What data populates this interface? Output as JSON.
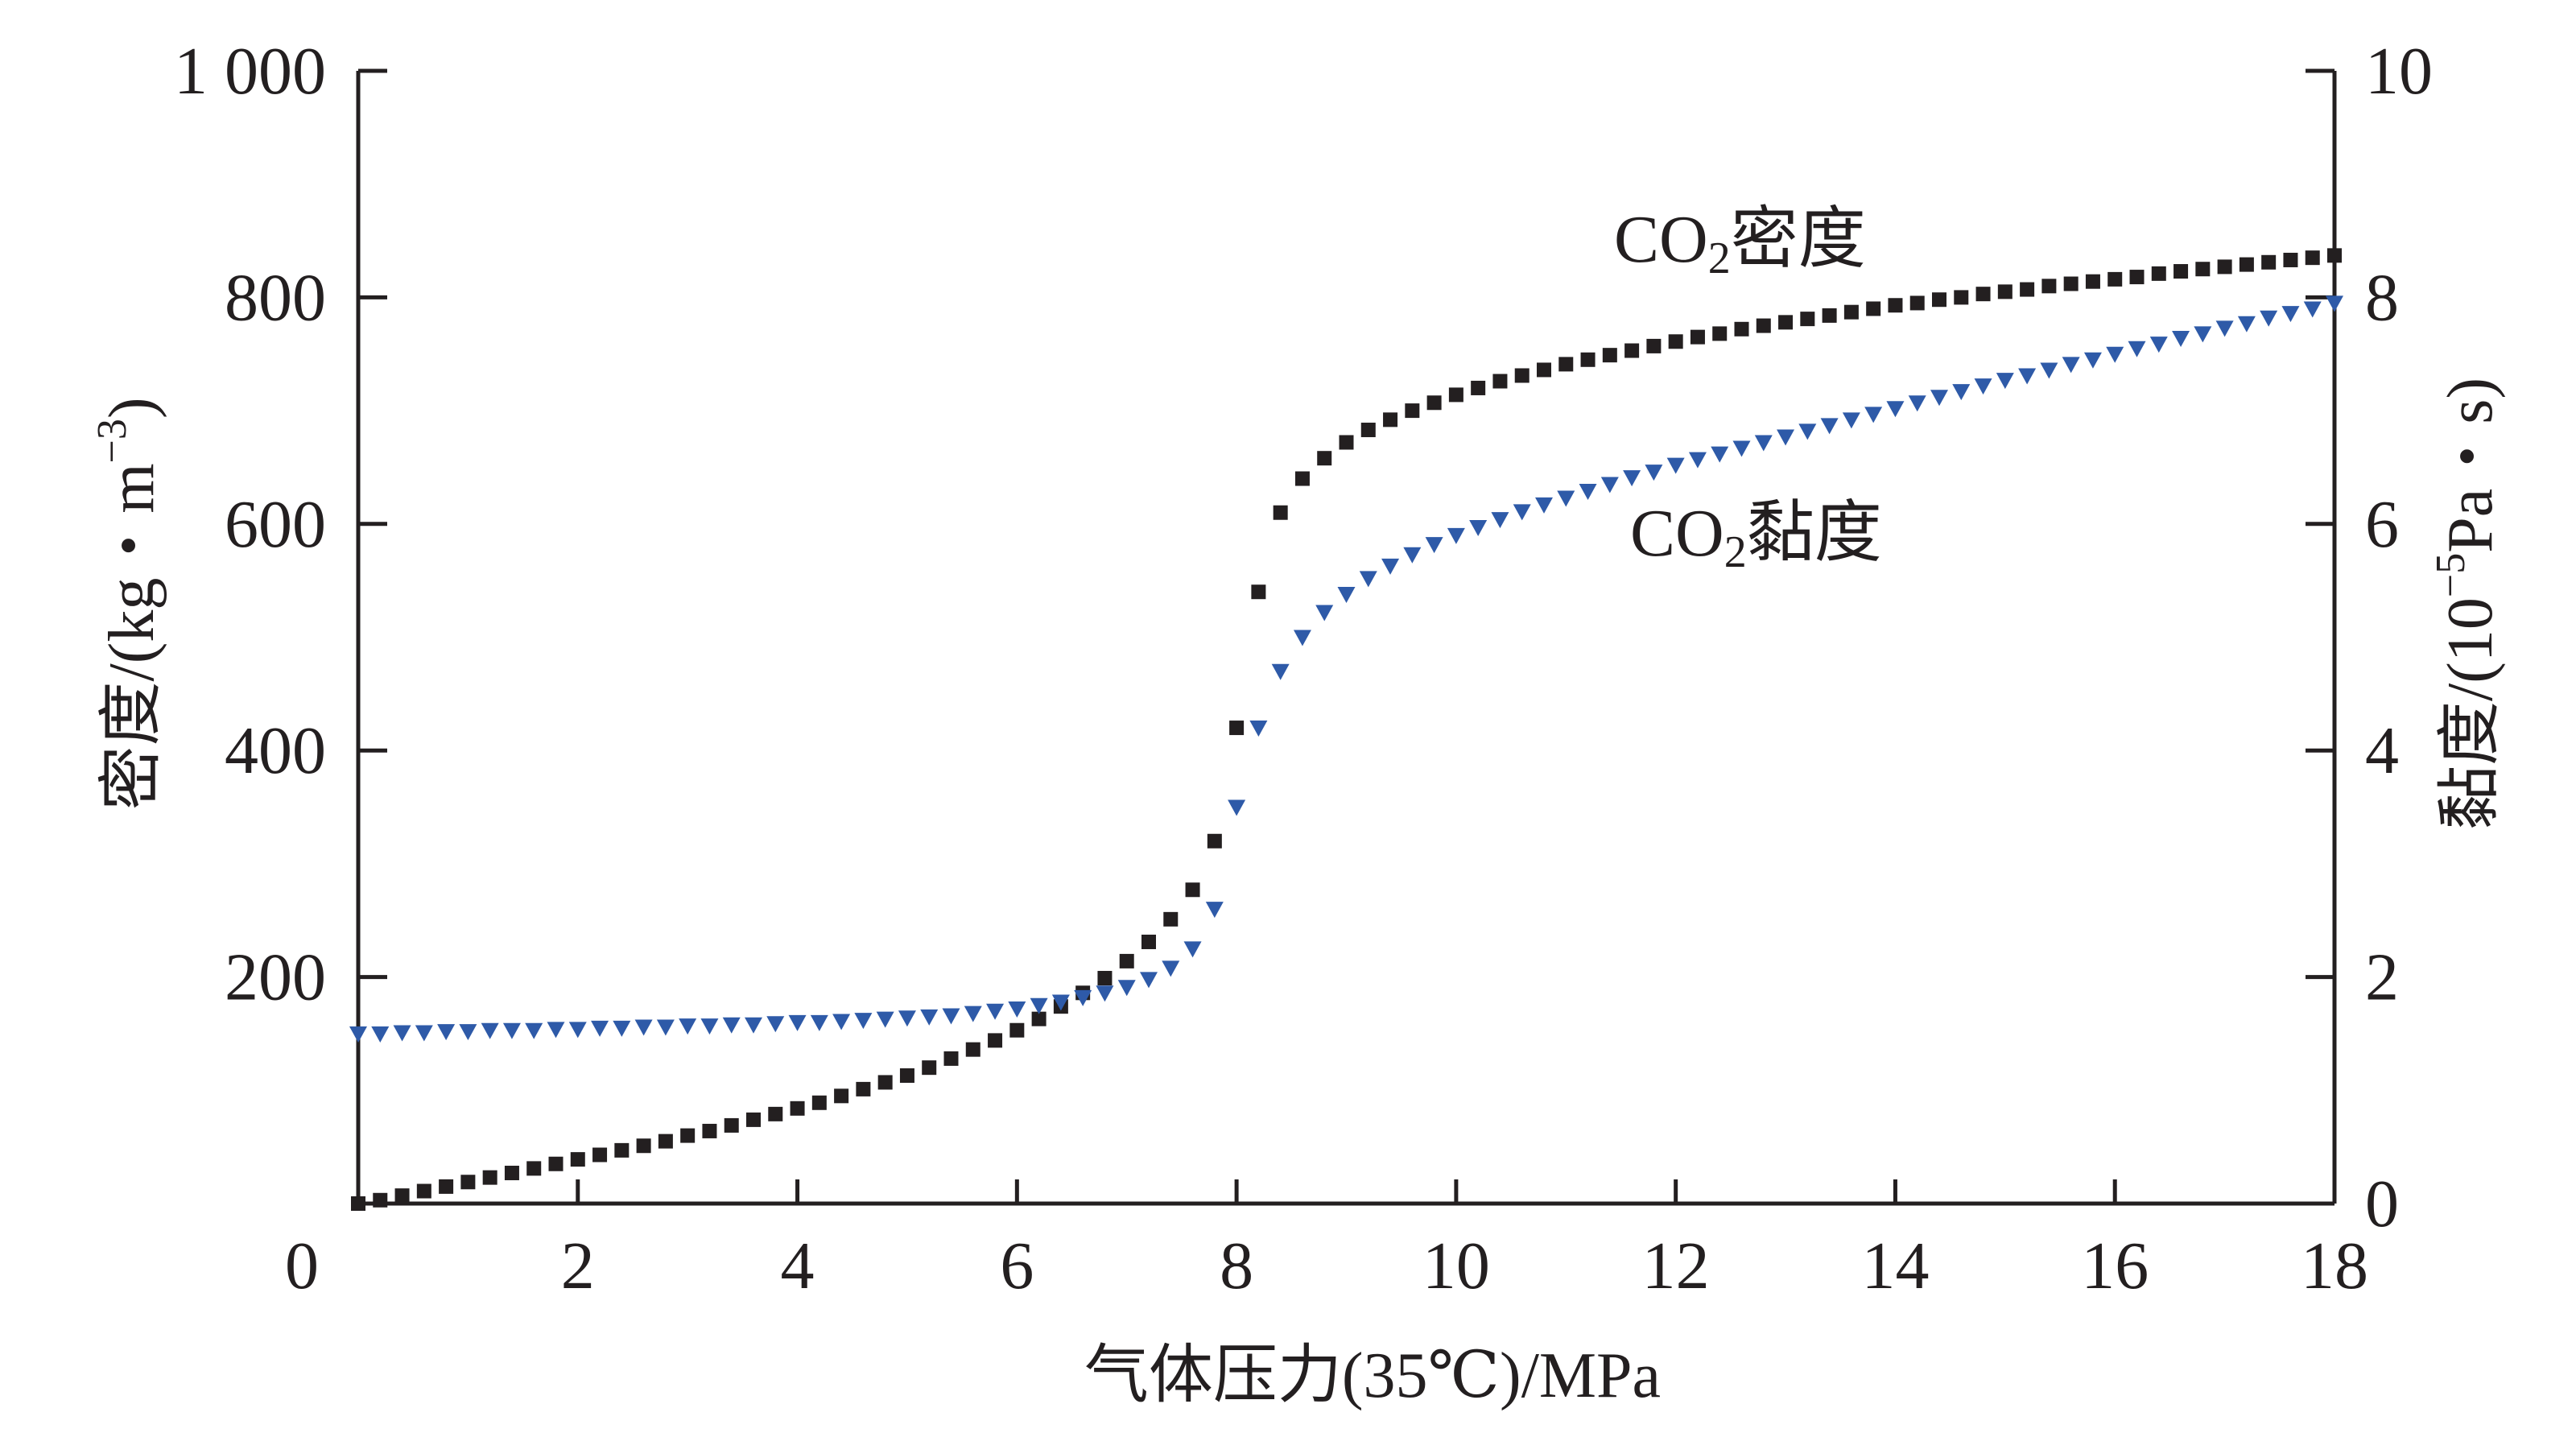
{
  "chart_data": {
    "type": "scatter",
    "x": [
      0.0,
      0.2,
      0.4,
      0.6,
      0.8,
      1.0,
      1.2,
      1.4,
      1.6,
      1.8,
      2.0,
      2.2,
      2.4,
      2.6,
      2.8,
      3.0,
      3.2,
      3.4,
      3.6,
      3.8,
      4.0,
      4.2,
      4.4,
      4.6,
      4.8,
      5.0,
      5.2,
      5.4,
      5.6,
      5.8,
      6.0,
      6.2,
      6.4,
      6.6,
      6.8,
      7.0,
      7.2,
      7.4,
      7.6,
      7.8,
      8.0,
      8.2,
      8.4,
      8.6,
      8.8,
      9.0,
      9.2,
      9.4,
      9.6,
      9.8,
      10.0,
      10.2,
      10.4,
      10.6,
      10.8,
      11.0,
      11.2,
      11.4,
      11.6,
      11.8,
      12.0,
      12.2,
      12.4,
      12.6,
      12.8,
      13.0,
      13.2,
      13.4,
      13.6,
      13.8,
      14.0,
      14.2,
      14.4,
      14.6,
      14.8,
      15.0,
      15.2,
      15.4,
      15.6,
      15.8,
      16.0,
      16.2,
      16.4,
      16.6,
      16.8,
      17.0,
      17.2,
      17.4,
      17.6,
      17.8,
      18.0
    ],
    "series": [
      {
        "name": "CO2密度",
        "axis": "left",
        "marker": "square",
        "color": "#231f20",
        "values": [
          0,
          3,
          7,
          11,
          15,
          19,
          23,
          27,
          31,
          35,
          39,
          43,
          47,
          51,
          55,
          60,
          64,
          69,
          74,
          79,
          84,
          89,
          95,
          101,
          107,
          113,
          120,
          128,
          136,
          144,
          153,
          163,
          174,
          186,
          199,
          214,
          231,
          251,
          277,
          320,
          420,
          540,
          610,
          640,
          658,
          672,
          683,
          692,
          700,
          707,
          714,
          720,
          726,
          731,
          736,
          741,
          745,
          749,
          753,
          757,
          761,
          765,
          768,
          772,
          775,
          778,
          781,
          784,
          787,
          790,
          793,
          795,
          798,
          800,
          803,
          805,
          807,
          810,
          812,
          814,
          816,
          818,
          821,
          823,
          825,
          827,
          829,
          831,
          833,
          835,
          837
        ]
      },
      {
        "name": "CO2黏度",
        "axis": "right",
        "marker": "triangle-down",
        "color": "#2e5aa8",
        "values": [
          1.5,
          1.5,
          1.51,
          1.51,
          1.52,
          1.52,
          1.53,
          1.53,
          1.53,
          1.54,
          1.54,
          1.55,
          1.55,
          1.56,
          1.56,
          1.57,
          1.57,
          1.58,
          1.58,
          1.59,
          1.6,
          1.6,
          1.61,
          1.62,
          1.63,
          1.64,
          1.65,
          1.66,
          1.68,
          1.7,
          1.72,
          1.75,
          1.78,
          1.82,
          1.86,
          1.91,
          1.98,
          2.08,
          2.25,
          2.6,
          3.5,
          4.2,
          4.7,
          5.0,
          5.22,
          5.38,
          5.52,
          5.63,
          5.73,
          5.82,
          5.9,
          5.97,
          6.04,
          6.11,
          6.17,
          6.23,
          6.29,
          6.35,
          6.41,
          6.46,
          6.52,
          6.57,
          6.62,
          6.67,
          6.72,
          6.77,
          6.82,
          6.87,
          6.92,
          6.97,
          7.02,
          7.07,
          7.12,
          7.17,
          7.22,
          7.27,
          7.31,
          7.36,
          7.41,
          7.45,
          7.5,
          7.55,
          7.59,
          7.64,
          7.68,
          7.73,
          7.77,
          7.82,
          7.86,
          7.9,
          7.95
        ]
      }
    ],
    "xlabel": "气体压力(35℃)/MPa",
    "ylabel": "密度/(kg・m",
    "ylabel_sup": "−3",
    "ylabel_end": ")",
    "y2label": "黏度/(10",
    "y2label_sup": "−5",
    "y2label_end": "Pa・s)",
    "xlim": [
      0,
      18
    ],
    "ylim": [
      0,
      1000
    ],
    "y2lim": [
      0,
      10
    ],
    "xticks": [
      0,
      2,
      4,
      6,
      8,
      10,
      12,
      14,
      16,
      18
    ],
    "xtick_labels": [
      "0",
      "2",
      "4",
      "6",
      "8",
      "10",
      "12",
      "14",
      "16",
      "18"
    ],
    "yticks": [
      200,
      400,
      600,
      800,
      1000
    ],
    "ytick_labels": [
      "200",
      "400",
      "600",
      "800",
      "1 000"
    ],
    "y2ticks": [
      0,
      2,
      4,
      6,
      8,
      10
    ],
    "y2tick_labels": [
      "0",
      "2",
      "4",
      "6",
      "8",
      "10"
    ],
    "annotations": [
      {
        "series": 0,
        "main": "CO",
        "sub": "2",
        "rest": "密度"
      },
      {
        "series": 1,
        "main": "CO",
        "sub": "2",
        "rest": "黏度"
      }
    ],
    "grid": false,
    "legend": "none"
  }
}
